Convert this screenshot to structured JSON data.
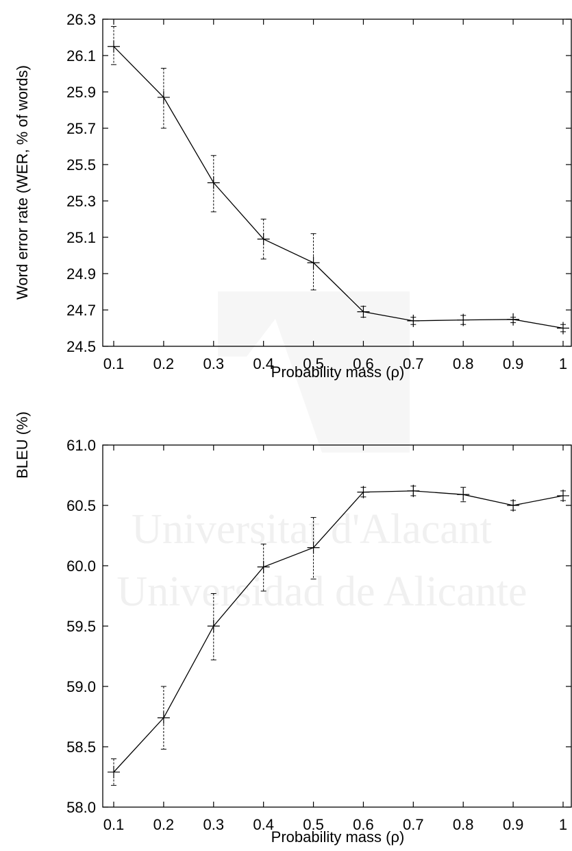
{
  "watermark": {
    "line1": "Universitat d'Alacant",
    "line2": "Universidad de Alicante"
  },
  "chart_data": [
    {
      "type": "line",
      "title": "",
      "xlabel": "Probability mass (ρ)",
      "ylabel": "Word error rate (WER, % of words)",
      "x": [
        0.1,
        0.2,
        0.3,
        0.4,
        0.5,
        0.6,
        0.7,
        0.8,
        0.9,
        1
      ],
      "xtick_labels": [
        "0.1",
        "0.2",
        "0.3",
        "0.4",
        "0.5",
        "0.6",
        "0.7",
        "0.8",
        "0.9",
        "1"
      ],
      "ytick_labels": [
        "24.5",
        "24.7",
        "24.9",
        "25.1",
        "25.3",
        "25.5",
        "25.7",
        "25.9",
        "26.1",
        "26.3"
      ],
      "ylim": [
        24.5,
        26.3
      ],
      "grid": false,
      "series": [
        {
          "values": [
            26.15,
            25.87,
            25.4,
            25.09,
            24.96,
            24.69,
            24.64,
            24.645,
            24.648,
            24.6
          ],
          "err_low": [
            26.05,
            25.7,
            25.24,
            24.98,
            24.81,
            24.66,
            24.62,
            24.62,
            24.63,
            24.58
          ],
          "err_high": [
            26.26,
            26.03,
            25.55,
            25.2,
            25.12,
            24.72,
            24.66,
            24.67,
            24.66,
            24.62
          ],
          "color": "#000000"
        }
      ]
    },
    {
      "type": "line",
      "title": "",
      "xlabel": "Probability mass (ρ)",
      "ylabel": "BLEU (%)",
      "x": [
        0.1,
        0.2,
        0.3,
        0.4,
        0.5,
        0.6,
        0.7,
        0.8,
        0.9,
        1
      ],
      "xtick_labels": [
        "0.1",
        "0.2",
        "0.3",
        "0.4",
        "0.5",
        "0.6",
        "0.7",
        "0.8",
        "0.9",
        "1"
      ],
      "ytick_labels": [
        "58.0",
        "58.5",
        "59.0",
        "59.5",
        "60.0",
        "60.5",
        "61.0"
      ],
      "ylim": [
        58.0,
        61.0
      ],
      "grid": false,
      "series": [
        {
          "values": [
            58.29,
            58.74,
            59.5,
            59.99,
            60.15,
            60.61,
            60.62,
            60.59,
            60.5,
            60.58
          ],
          "err_low": [
            58.18,
            58.48,
            59.22,
            59.79,
            59.89,
            60.57,
            60.58,
            60.53,
            60.46,
            60.54
          ],
          "err_high": [
            58.4,
            59.0,
            59.77,
            60.18,
            60.4,
            60.65,
            60.66,
            60.65,
            60.54,
            60.62
          ],
          "color": "#000000"
        }
      ]
    }
  ]
}
